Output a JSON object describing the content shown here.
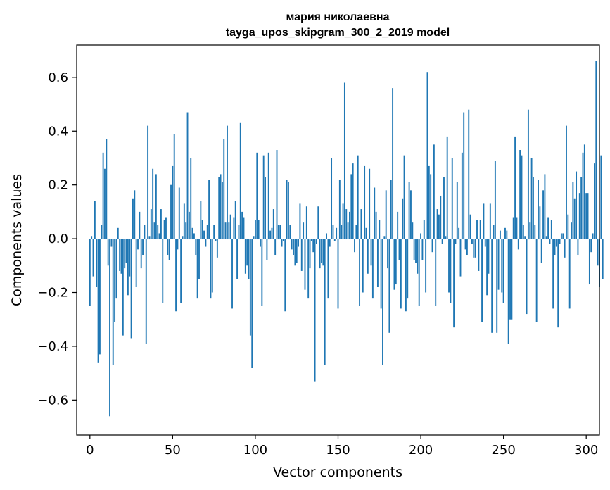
{
  "chart_data": {
    "type": "bar",
    "title": "мария николаевна",
    "subtitle": "tayga_upos_skipgram_300_2_2019 model",
    "xlabel": "Vector components",
    "ylabel": "Components values",
    "xlim": [
      -8,
      308
    ],
    "ylim": [
      -0.73,
      0.72
    ],
    "xticks": [
      0,
      50,
      100,
      150,
      200,
      250,
      300
    ],
    "xtick_labels": [
      "0",
      "50",
      "100",
      "150",
      "200",
      "250",
      "300"
    ],
    "yticks": [
      -0.6,
      -0.4,
      -0.2,
      0.0,
      0.2,
      0.4,
      0.6
    ],
    "ytick_labels": [
      "−0.6",
      "−0.4",
      "−0.2",
      "0.0",
      "0.2",
      "0.4",
      "0.6"
    ],
    "bar_color": "#1f77b4",
    "values": [
      -0.25,
      0.01,
      -0.14,
      0.14,
      -0.18,
      -0.46,
      -0.43,
      0.05,
      0.32,
      0.26,
      0.37,
      -0.1,
      -0.66,
      -0.03,
      -0.47,
      -0.31,
      -0.22,
      0.04,
      -0.12,
      -0.13,
      -0.36,
      -0.11,
      -0.09,
      -0.21,
      -0.14,
      -0.37,
      0.15,
      0.18,
      -0.18,
      -0.04,
      0.1,
      -0.11,
      -0.06,
      0.05,
      -0.39,
      0.42,
      0.01,
      0.11,
      0.26,
      0.06,
      0.24,
      0.05,
      0.02,
      0.11,
      -0.24,
      0.07,
      0.08,
      -0.06,
      -0.08,
      0.2,
      0.27,
      0.39,
      -0.27,
      -0.04,
      0.19,
      -0.24,
      0.01,
      0.13,
      0.06,
      0.47,
      0.1,
      0.3,
      0.04,
      0.02,
      -0.06,
      -0.22,
      -0.15,
      0.14,
      0.07,
      0.03,
      -0.03,
      0.05,
      0.22,
      -0.22,
      -0.2,
      0.05,
      -0.01,
      -0.07,
      0.23,
      0.24,
      0.21,
      0.37,
      0.06,
      0.42,
      0.06,
      0.09,
      -0.26,
      0.08,
      0.14,
      -0.15,
      0.05,
      0.43,
      0.1,
      0.08,
      -0.13,
      -0.1,
      -0.15,
      -0.36,
      -0.48,
      0.01,
      0.07,
      0.32,
      0.07,
      -0.03,
      -0.25,
      0.31,
      0.23,
      -0.08,
      0.32,
      0.03,
      0.04,
      0.11,
      -0.06,
      0.33,
      0.05,
      0.05,
      -0.03,
      -0.01,
      -0.27,
      0.22,
      0.21,
      0.05,
      -0.04,
      -0.06,
      -0.1,
      -0.09,
      -0.03,
      0.13,
      -0.12,
      0.06,
      -0.19,
      0.12,
      -0.22,
      -0.11,
      -0.01,
      -0.05,
      -0.53,
      -0.02,
      0.12,
      -0.11,
      -0.09,
      -0.1,
      -0.47,
      0.02,
      -0.22,
      -0.03,
      0.3,
      0.05,
      -0.01,
      0.04,
      -0.26,
      0.22,
      0.05,
      0.13,
      0.58,
      0.11,
      0.06,
      0.1,
      0.24,
      0.28,
      -0.05,
      0.05,
      0.31,
      -0.25,
      0.11,
      -0.2,
      0.27,
      0.04,
      -0.13,
      0.26,
      -0.1,
      -0.22,
      0.19,
      0.1,
      -0.18,
      0.07,
      -0.26,
      -0.47,
      0.01,
      0.18,
      -0.11,
      -0.35,
      0.22,
      0.56,
      -0.19,
      -0.17,
      0.1,
      -0.08,
      -0.26,
      0.15,
      0.31,
      -0.27,
      -0.22,
      0.21,
      0.18,
      0.06,
      -0.08,
      -0.09,
      -0.13,
      -0.25,
      0.02,
      -0.08,
      0.07,
      -0.2,
      0.62,
      0.27,
      0.24,
      -0.05,
      0.35,
      -0.25,
      0.11,
      0.09,
      0.16,
      -0.02,
      0.23,
      0.01,
      0.38,
      -0.2,
      -0.24,
      0.3,
      -0.33,
      -0.02,
      0.21,
      0.04,
      -0.14,
      0.32,
      0.47,
      -0.04,
      -0.06,
      0.48,
      0.09,
      -0.02,
      -0.07,
      -0.07,
      0.07,
      -0.12,
      0.07,
      -0.31,
      0.13,
      -0.03,
      -0.21,
      -0.13,
      0.13,
      -0.35,
      0.05,
      0.29,
      -0.35,
      -0.19,
      0.03,
      -0.2,
      -0.24,
      0.04,
      0.03,
      -0.39,
      -0.3,
      -0.3,
      0.08,
      0.38,
      0.08,
      -0.04,
      0.33,
      0.31,
      0.05,
      0.01,
      -0.28,
      0.48,
      0.06,
      0.3,
      0.23,
      0.05,
      -0.31,
      0.22,
      0.12,
      -0.09,
      0.18,
      0.24,
      0.01,
      0.08,
      -0.02,
      0.07,
      -0.26,
      -0.06,
      -0.03,
      -0.33,
      -0.02,
      0.02,
      0.02,
      -0.07,
      0.42,
      0.09,
      -0.26,
      0.06,
      0.21,
      0.15,
      0.25,
      -0.06,
      0.17,
      0.23,
      0.32,
      0.35,
      0.17,
      0.17,
      -0.17,
      -0.05,
      0.02,
      0.28,
      0.66,
      -0.1,
      -0.18,
      0.31,
      -0.15
    ]
  }
}
